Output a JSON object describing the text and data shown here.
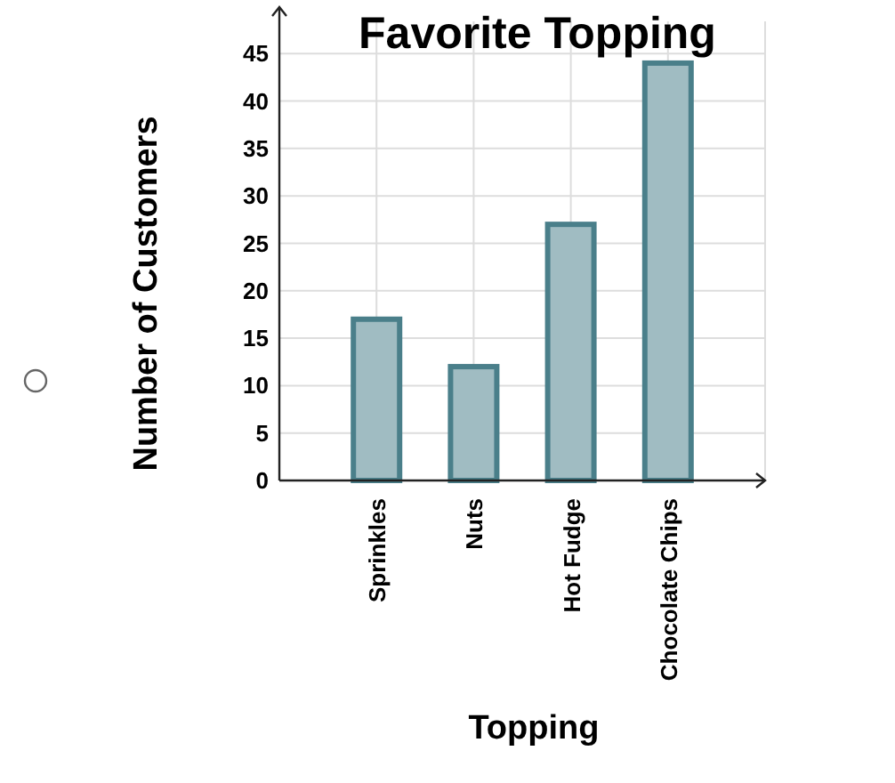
{
  "chart_data": {
    "type": "bar",
    "title": "Favorite Topping",
    "xlabel": "Topping",
    "ylabel": "Number of Customers",
    "categories": [
      "Sprinkles",
      "Nuts",
      "Hot Fudge",
      "Chocolate Chips"
    ],
    "values": [
      17,
      12,
      27,
      44
    ],
    "color": "#a0bcc2",
    "ylim": [
      0,
      48.4
    ],
    "yticks": [
      0,
      5,
      10,
      15,
      20,
      25,
      30,
      35,
      40,
      45
    ],
    "grid": true
  }
}
